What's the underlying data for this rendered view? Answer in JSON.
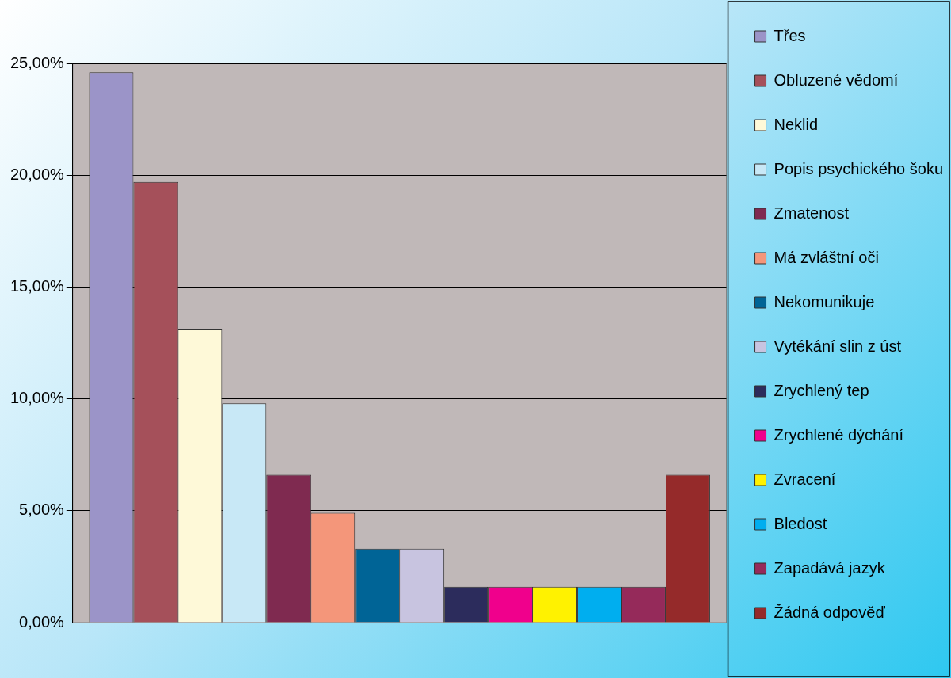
{
  "chart_data": {
    "type": "bar",
    "categories": [
      null
    ],
    "series": [
      {
        "name": "Třes",
        "color": "#9b94c8",
        "values": [
          24.6
        ]
      },
      {
        "name": "Obluzené vědomí",
        "color": "#a5505a",
        "values": [
          19.7
        ]
      },
      {
        "name": "Neklid",
        "color": "#fef9d8",
        "values": [
          13.1
        ]
      },
      {
        "name": "Popis psychického šoku",
        "color": "#c8e8f6",
        "values": [
          9.8
        ]
      },
      {
        "name": "Zmatenost",
        "color": "#7f2a50",
        "values": [
          6.6
        ]
      },
      {
        "name": "Má zvláštní oči",
        "color": "#f4967a",
        "values": [
          4.9
        ]
      },
      {
        "name": "Nekomunikuje",
        "color": "#006496",
        "values": [
          3.3
        ]
      },
      {
        "name": "Vytékání slin z úst",
        "color": "#c8c4e0",
        "values": [
          3.3
        ]
      },
      {
        "name": "Zrychlený tep",
        "color": "#2c2c5c",
        "values": [
          1.6
        ]
      },
      {
        "name": "Zrychlené dýchání",
        "color": "#f0008c",
        "values": [
          1.6
        ]
      },
      {
        "name": "Zvracení",
        "color": "#fff200",
        "values": [
          1.6
        ]
      },
      {
        "name": "Bledost",
        "color": "#00aeef",
        "values": [
          1.6
        ]
      },
      {
        "name": "Zapadává jazyk",
        "color": "#952a5a",
        "values": [
          1.6
        ]
      },
      {
        "name": "Žádná odpověď",
        "color": "#952a2a",
        "values": [
          6.6
        ]
      }
    ],
    "ylim": [
      0,
      25
    ],
    "yticks": [
      {
        "value": 0,
        "label": "0,00%"
      },
      {
        "value": 5,
        "label": "5,00%"
      },
      {
        "value": 10,
        "label": "10,00%"
      },
      {
        "value": 15,
        "label": "15,00%"
      },
      {
        "value": 20,
        "label": "20,00%"
      },
      {
        "value": 25,
        "label": "25,00%"
      }
    ],
    "tick_labels": "y",
    "grid": "y",
    "legend": "right"
  }
}
